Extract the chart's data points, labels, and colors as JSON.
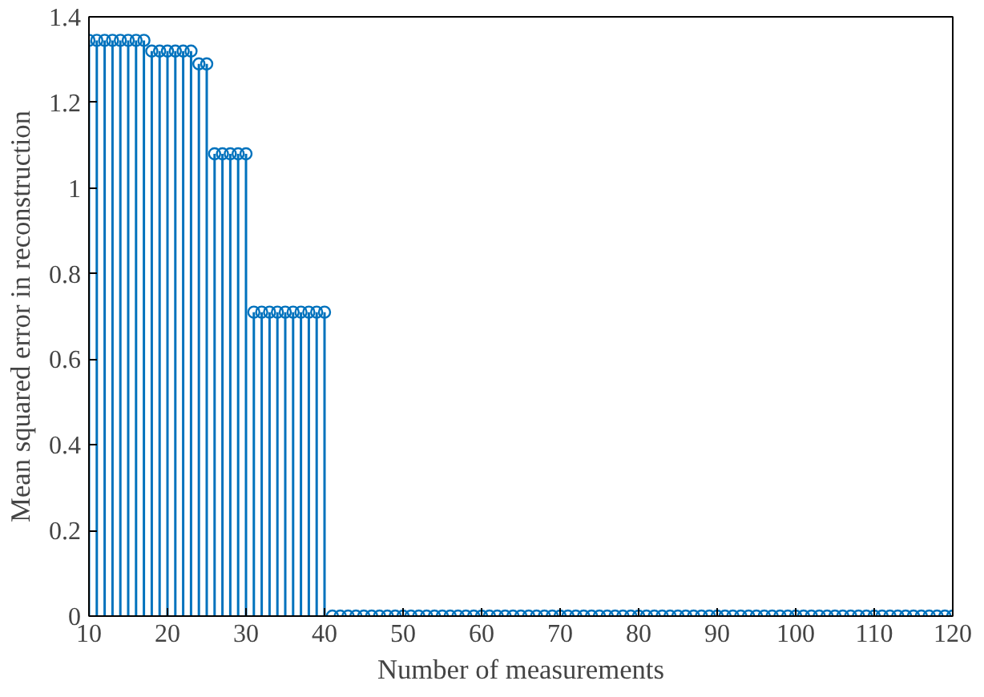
{
  "chart_data": {
    "type": "lollipop",
    "xlabel": "Number of measurements",
    "ylabel": "Mean squared error in reconstruction",
    "x": [
      10,
      11,
      12,
      13,
      14,
      15,
      16,
      17,
      18,
      19,
      20,
      21,
      22,
      23,
      24,
      25,
      26,
      27,
      28,
      29,
      30,
      31,
      32,
      33,
      34,
      35,
      36,
      37,
      38,
      39,
      40,
      41,
      42,
      43,
      44,
      45,
      46,
      47,
      48,
      49,
      50,
      51,
      52,
      53,
      54,
      55,
      56,
      57,
      58,
      59,
      60,
      61,
      62,
      63,
      64,
      65,
      66,
      67,
      68,
      69,
      70,
      71,
      72,
      73,
      74,
      75,
      76,
      77,
      78,
      79,
      80,
      81,
      82,
      83,
      84,
      85,
      86,
      87,
      88,
      89,
      90,
      91,
      92,
      93,
      94,
      95,
      96,
      97,
      98,
      99,
      100,
      101,
      102,
      103,
      104,
      105,
      106,
      107,
      108,
      109,
      110,
      111,
      112,
      113,
      114,
      115,
      116,
      117,
      118,
      119,
      120
    ],
    "series": [
      {
        "color": "#0072bd",
        "values": [
          1.345,
          1.345,
          1.345,
          1.345,
          1.345,
          1.345,
          1.345,
          1.345,
          1.32,
          1.32,
          1.32,
          1.32,
          1.32,
          1.32,
          1.29,
          1.29,
          1.08,
          1.08,
          1.08,
          1.08,
          1.08,
          0.71,
          0.71,
          0.71,
          0.71,
          0.71,
          0.71,
          0.71,
          0.71,
          0.71,
          0.71,
          0,
          0,
          0,
          0,
          0,
          0,
          0,
          0,
          0,
          0,
          0,
          0,
          0,
          0,
          0,
          0,
          0,
          0,
          0,
          0,
          0,
          0,
          0,
          0,
          0,
          0,
          0,
          0,
          0,
          0,
          0,
          0,
          0,
          0,
          0,
          0,
          0,
          0,
          0,
          0,
          0,
          0,
          0,
          0,
          0,
          0,
          0,
          0,
          0,
          0,
          0,
          0,
          0,
          0,
          0,
          0,
          0,
          0,
          0,
          0,
          0,
          0,
          0,
          0,
          0,
          0,
          0,
          0,
          0,
          0,
          0,
          0,
          0,
          0,
          0,
          0,
          0,
          0,
          0,
          0
        ]
      }
    ],
    "xlim": [
      10,
      120
    ],
    "xticks": [
      10,
      20,
      30,
      40,
      50,
      60,
      70,
      80,
      90,
      100,
      110,
      120
    ],
    "ylim": [
      0,
      1.4
    ],
    "yticks": [
      0,
      0.2,
      0.4,
      0.6,
      0.8,
      1,
      1.2,
      1.4
    ],
    "marker": "circle"
  }
}
